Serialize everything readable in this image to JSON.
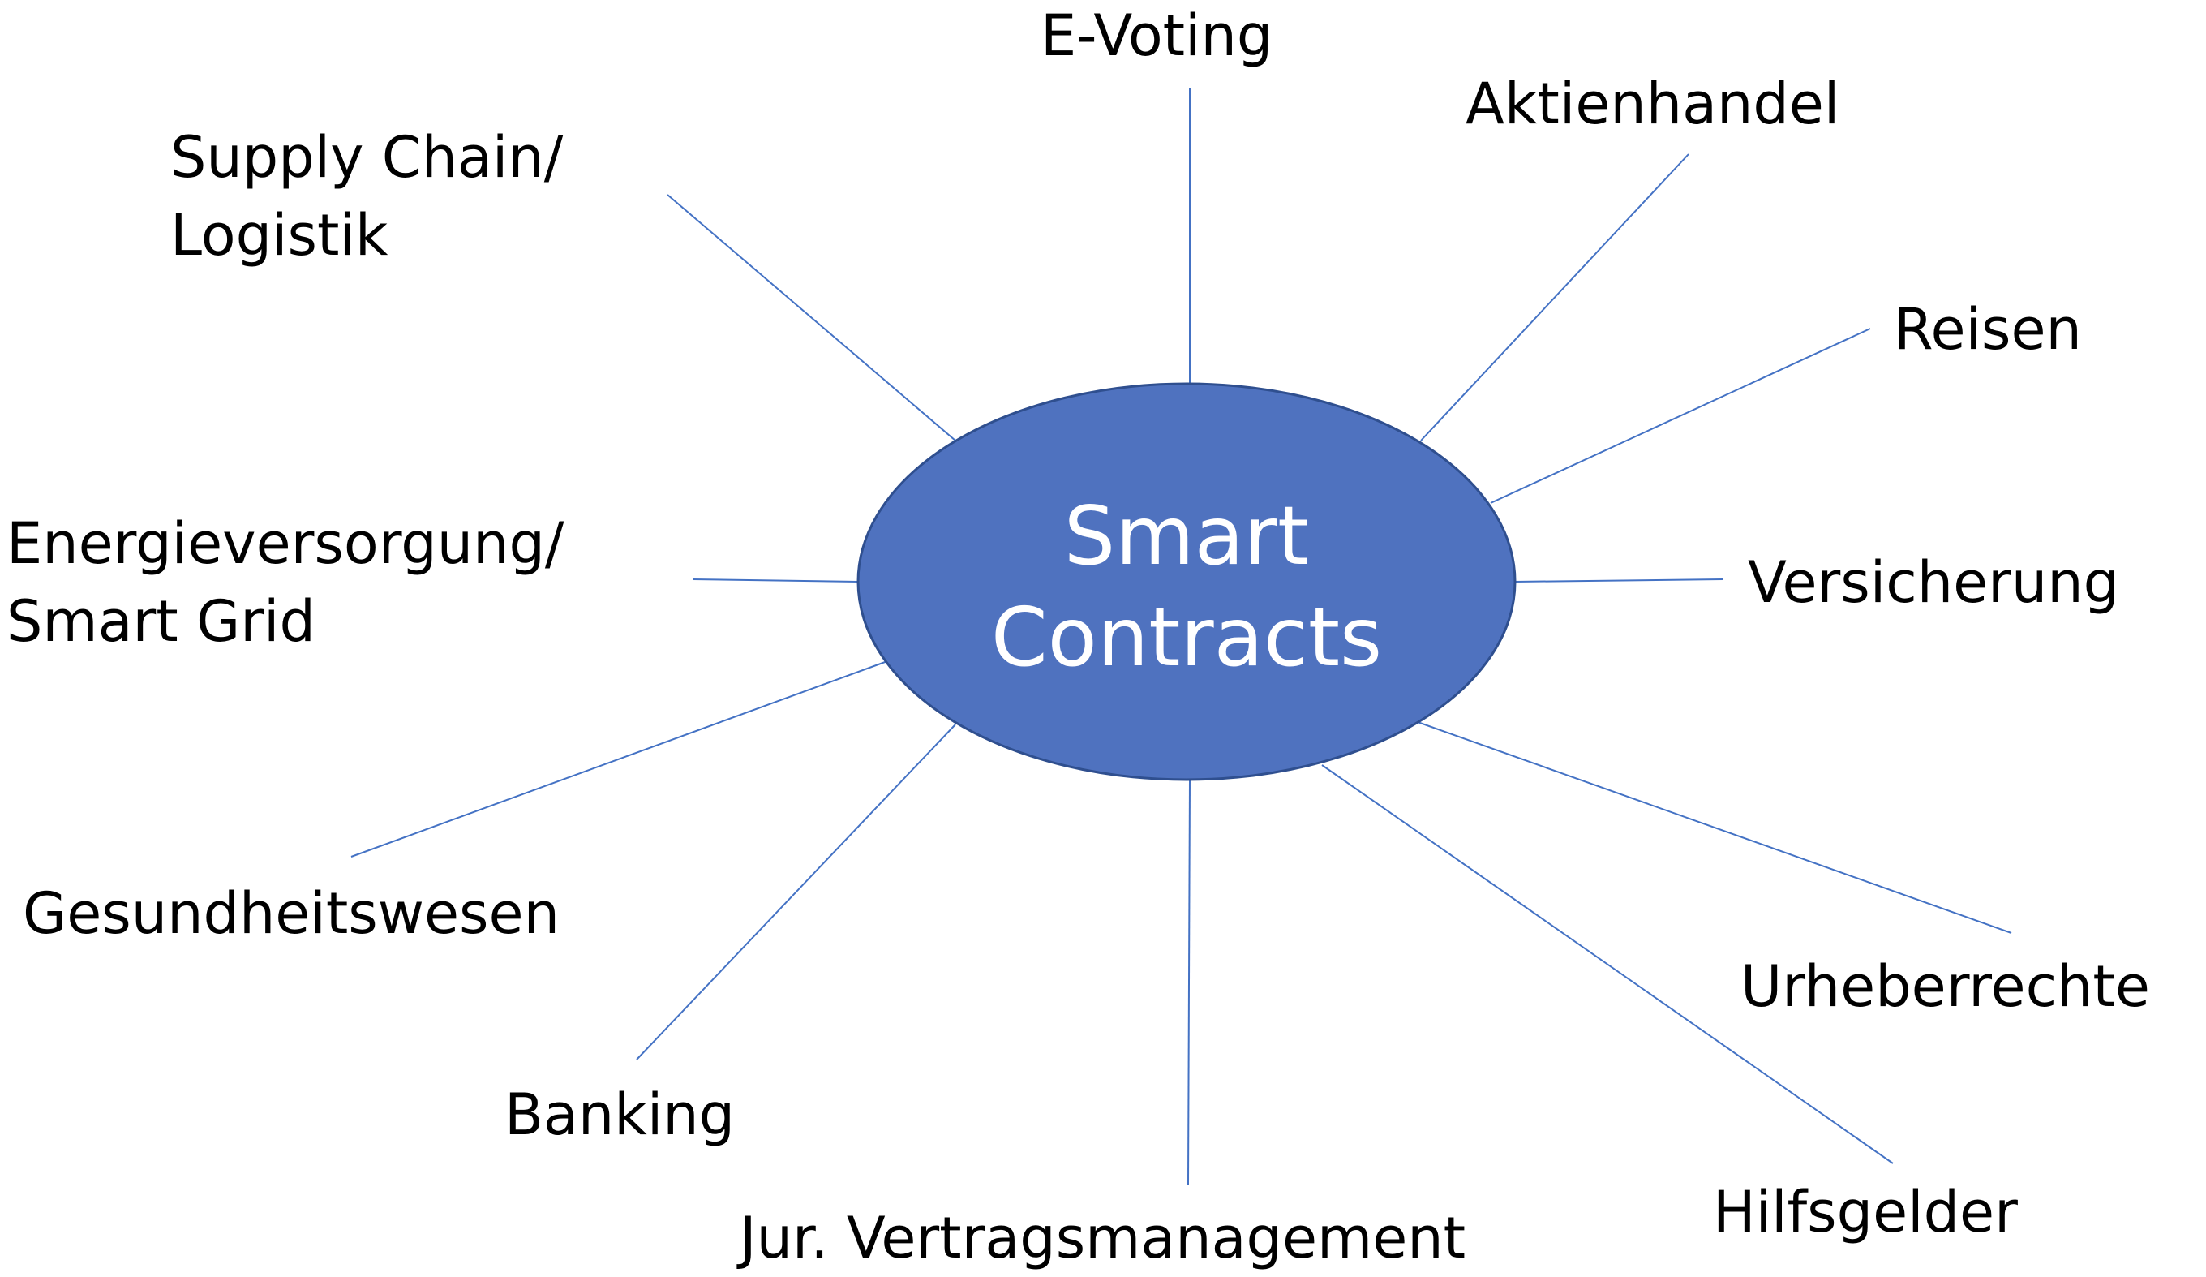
{
  "center": {
    "line1": "Smart",
    "line2": "Contracts"
  },
  "topics": {
    "evoting": "E-Voting",
    "aktienhandel": "Aktienhandel",
    "reisen": "Reisen",
    "versicherung": "Versicherung",
    "urheberrechte": "Urheberrechte",
    "hilfsgelder": "Hilfsgelder",
    "vertragsmanagement": "Jur. Vertragsmanagement",
    "banking": "Banking",
    "gesundheitswesen": "Gesundheitswesen",
    "energie_line1": "Energieversorgung/",
    "energie_line2": "Smart Grid",
    "supply_line1": "Supply Chain/",
    "supply_line2": "Logistik"
  },
  "colors": {
    "hub_fill": "#4f72bf",
    "spoke": "#4472c4"
  }
}
